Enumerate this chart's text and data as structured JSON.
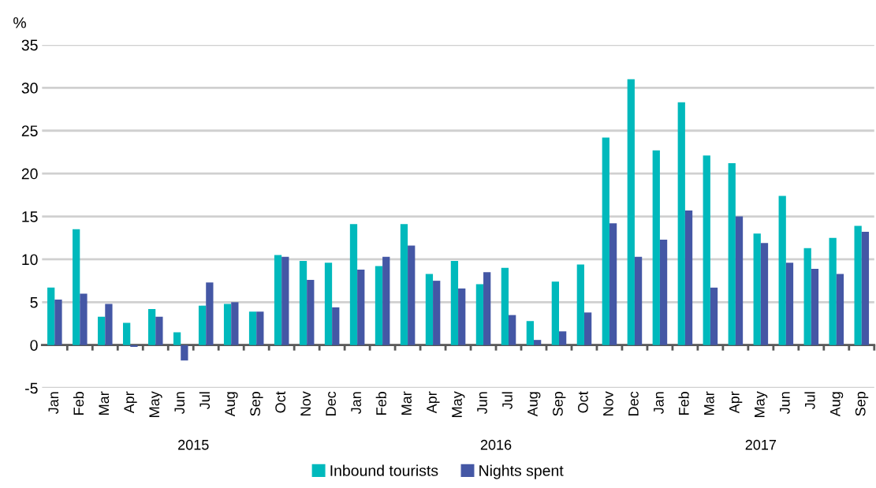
{
  "chart_data": {
    "type": "bar",
    "ylabel": "%",
    "categories": [
      "Jan",
      "Feb",
      "Mar",
      "Apr",
      "May",
      "Jun",
      "Jul",
      "Aug",
      "Sep",
      "Oct",
      "Nov",
      "Dec",
      "Jan",
      "Feb",
      "Mar",
      "Apr",
      "May",
      "Jun",
      "Jul",
      "Aug",
      "Sep",
      "Oct",
      "Nov",
      "Dec",
      "Jan",
      "Feb",
      "Mar",
      "Apr",
      "May",
      "Jun",
      "Jul",
      "Aug",
      "Sep"
    ],
    "series": [
      {
        "name": "Inbound tourists",
        "color": "#00b9bc",
        "values": [
          6.7,
          13.5,
          3.3,
          2.6,
          4.2,
          1.5,
          4.6,
          4.8,
          3.9,
          10.5,
          9.8,
          9.6,
          14.1,
          9.2,
          14.1,
          8.3,
          9.8,
          7.1,
          9.0,
          2.8,
          7.4,
          9.4,
          24.2,
          31.0,
          22.7,
          28.3,
          22.1,
          21.2,
          13.0,
          17.4,
          11.3,
          12.5,
          13.9
        ]
      },
      {
        "name": "Nights spent",
        "color": "#4457a5",
        "values": [
          5.3,
          6.0,
          4.8,
          -0.2,
          3.3,
          -1.8,
          7.3,
          5.0,
          3.9,
          10.3,
          7.6,
          4.4,
          8.8,
          10.3,
          11.6,
          7.5,
          6.6,
          8.5,
          3.5,
          0.6,
          1.6,
          3.8,
          14.2,
          10.3,
          12.3,
          15.7,
          6.7,
          15.0,
          11.9,
          9.6,
          8.9,
          8.3,
          13.2
        ]
      }
    ],
    "annotations": [
      "2015",
      "2016",
      "2017"
    ],
    "ylim": [
      -5,
      35
    ],
    "yticks": [
      -5,
      0,
      5,
      10,
      15,
      20,
      25,
      30,
      35
    ],
    "grid": "y",
    "legend": "bottom"
  }
}
